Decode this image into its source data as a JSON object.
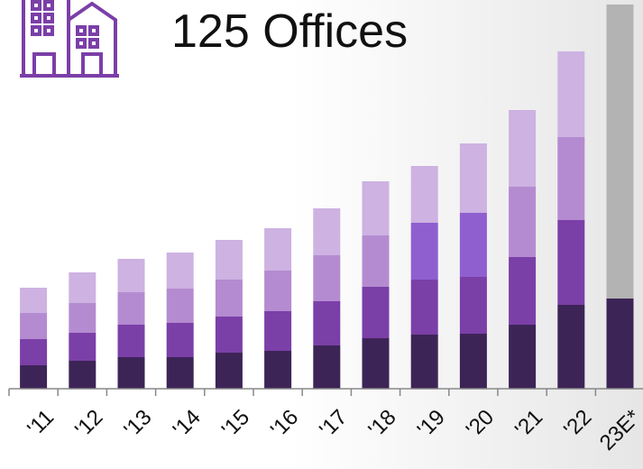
{
  "chart_data": {
    "type": "stacked-bar",
    "title": "125 Offices",
    "categories": [
      "'11",
      "'12",
      "'13",
      "'14",
      "'15",
      "'16",
      "'17",
      "'18",
      "'19",
      "'20",
      "'21",
      "'22",
      "23E*"
    ],
    "series": [
      {
        "color": "#3d2457",
        "values": [
          26,
          31,
          35,
          35,
          40,
          42,
          48,
          56,
          60,
          61,
          71,
          93,
          100
        ]
      },
      {
        "color": "#7b3fa8",
        "values": [
          29,
          31,
          36,
          38,
          40,
          44,
          49,
          57,
          61,
          63,
          75,
          94,
          null
        ]
      },
      {
        "color": "#b48bd0",
        "colors": [
          "#b48bd0",
          "#b48bd0",
          "#b48bd0",
          "#b48bd0",
          "#b48bd0",
          "#b48bd0",
          "#b48bd0",
          "#b48bd0",
          "#8f5fd0",
          "#8f5fd0",
          "#b48bd0",
          "#b48bd0",
          "#b48bd0"
        ],
        "values": [
          29,
          33,
          36,
          38,
          41,
          45,
          51,
          57,
          63,
          71,
          78,
          92,
          null
        ]
      },
      {
        "color": "#cdb2e2",
        "values": [
          28,
          34,
          37,
          40,
          44,
          47,
          52,
          60,
          63,
          77,
          85,
          95,
          null
        ]
      },
      {
        "color": "#b3b3b3",
        "values": [
          null,
          null,
          null,
          null,
          null,
          null,
          null,
          null,
          null,
          null,
          null,
          null,
          326
        ]
      }
    ]
  }
}
